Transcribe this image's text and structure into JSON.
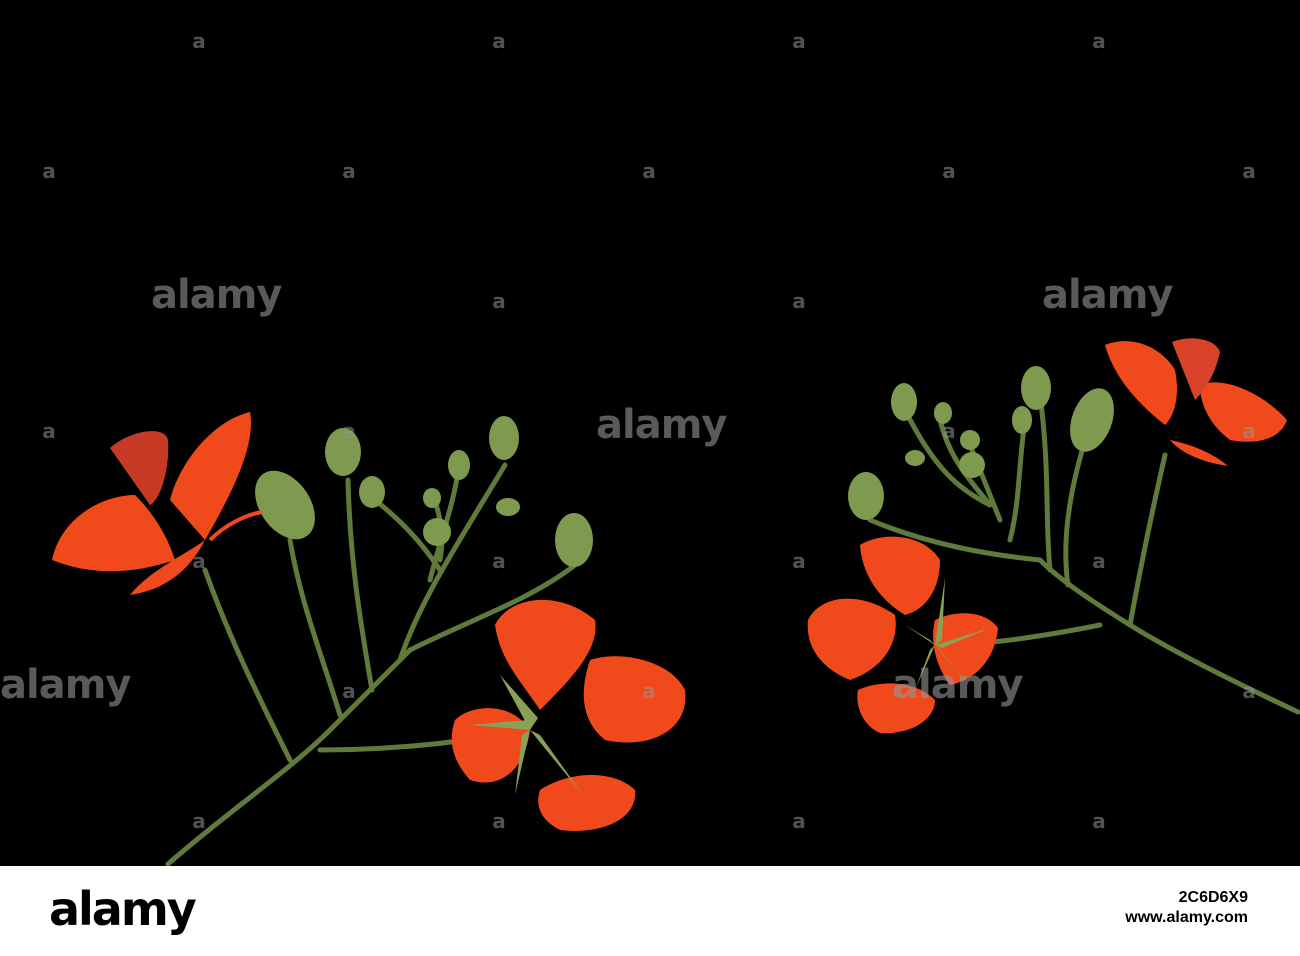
{
  "watermark": {
    "logo_text": "alamy",
    "small_glyph": "a"
  },
  "footer": {
    "logo_text": "alamy",
    "image_id": "2C6D6X9",
    "site": "www.alamy.com"
  },
  "colors": {
    "background": "#000000",
    "petal": "#f04a1c",
    "stem": "#5f7a3a",
    "bud": "#7d9a4f"
  }
}
